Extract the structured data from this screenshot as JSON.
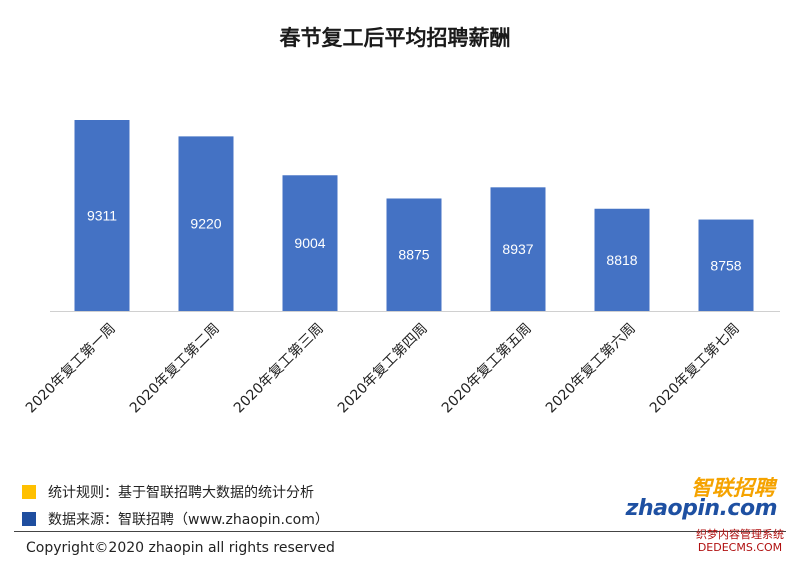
{
  "chart_data": {
    "type": "bar",
    "title": "春节复工后平均招聘薪酬",
    "categories": [
      "2020年复工第一周",
      "2020年复工第二周",
      "2020年复工第三周",
      "2020年复工第四周",
      "2020年复工第五周",
      "2020年复工第六周",
      "2020年复工第七周"
    ],
    "values": [
      9311,
      9220,
      9004,
      8875,
      8937,
      8818,
      8758
    ],
    "ylim": [
      8250,
      9400
    ],
    "grid": false,
    "bar_color": "#4472c4",
    "xlabel": "",
    "ylabel": ""
  },
  "legend": [
    {
      "text": "统计规则：基于智联招聘大数据的统计分析",
      "color": "#ffc000"
    },
    {
      "text": "数据来源：智联招聘（www.zhaopin.com）",
      "color": "#1f4e9f"
    }
  ],
  "footer": {
    "copyright": "Copyright©2020 zhaopin all rights reserved"
  },
  "logo": {
    "cn": "智联招聘",
    "en": "zhaopin.com"
  },
  "watermark": {
    "line1": "织梦内容管理系统",
    "line2": "DEDECMS.COM"
  }
}
